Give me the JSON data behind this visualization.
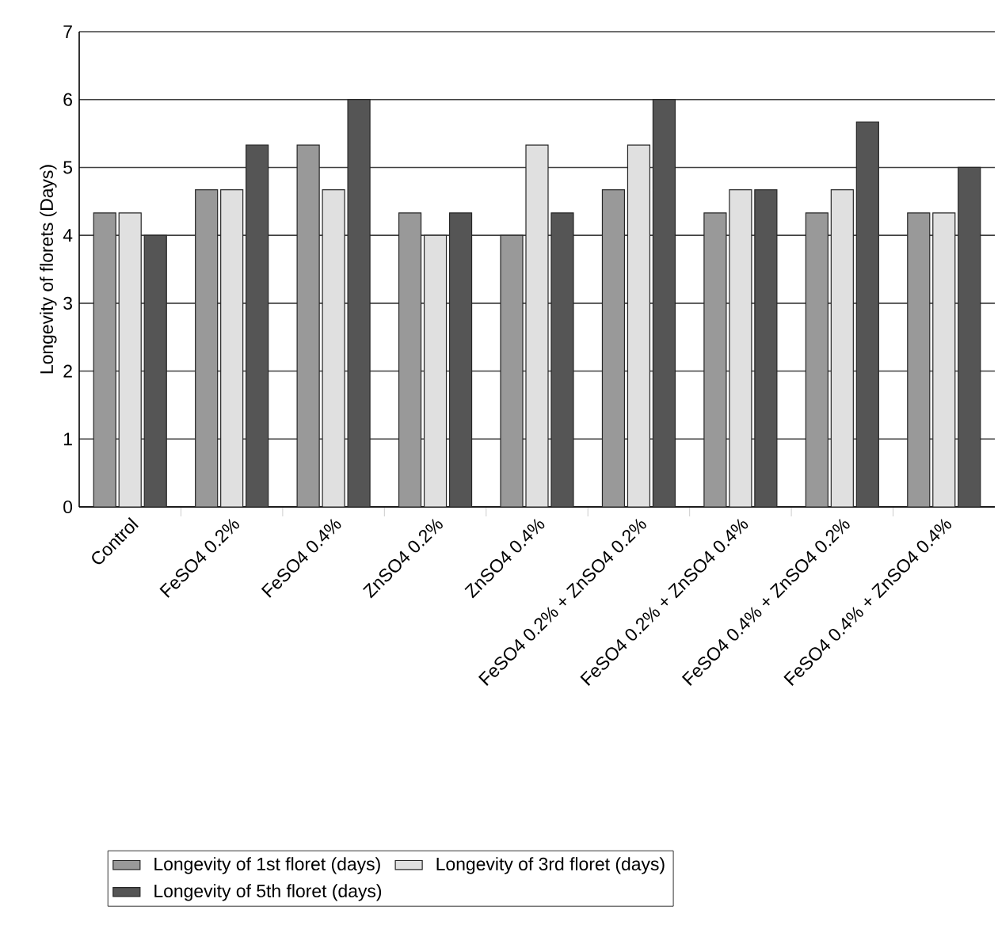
{
  "chart_data": {
    "type": "bar",
    "ylabel": "Longevity of florets (Days)",
    "categories": [
      "Control",
      "FeSO4 0.2%",
      "FeSO4 0.4%",
      "ZnSO4 0.2%",
      "ZnSO4 0.4%",
      "FeSO4 0.2% + ZnSO4 0.2%",
      "FeSO4 0.2% + ZnSO4 0.4%",
      "FeSO4 0.4% + ZnSO4 0.2%",
      "FeSO4 0.4% + ZnSO4 0.4%"
    ],
    "series": [
      {
        "name": "Longevity of 1st floret (days)",
        "color": "#999999",
        "values": [
          4.33,
          4.67,
          5.33,
          4.33,
          4.0,
          4.67,
          4.33,
          4.33,
          4.33
        ]
      },
      {
        "name": "Longevity of 3rd floret (days)",
        "color": "#e0e0e0",
        "values": [
          4.33,
          4.67,
          4.67,
          4.0,
          5.33,
          5.33,
          4.67,
          4.67,
          4.33
        ]
      },
      {
        "name": "Longevity of 5th floret (days)",
        "color": "#555555",
        "values": [
          4.0,
          5.33,
          6.0,
          4.33,
          4.33,
          6.0,
          4.67,
          5.67,
          5.0
        ]
      }
    ],
    "ylim": [
      0,
      7
    ],
    "yticks": [
      0,
      1,
      2,
      3,
      4,
      5,
      6,
      7
    ],
    "grid": "y",
    "legend": "bottom"
  }
}
